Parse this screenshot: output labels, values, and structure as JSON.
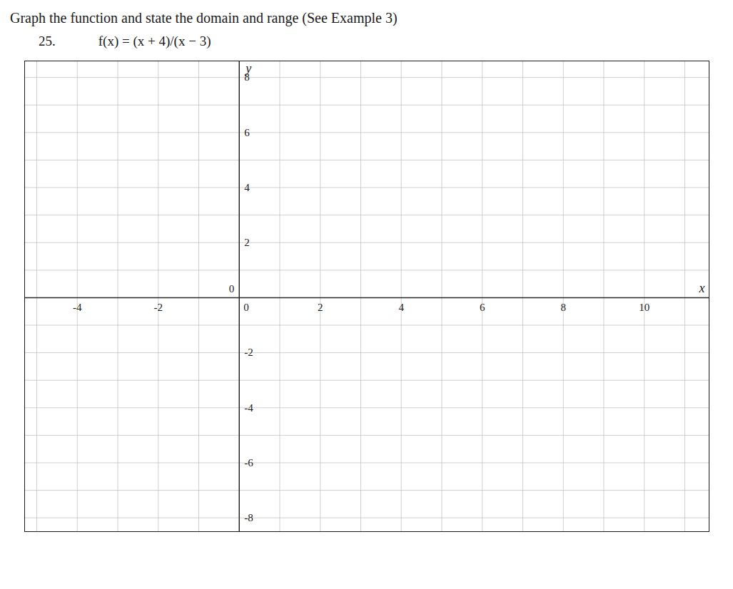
{
  "chart_data": {
    "type": "axes",
    "title": "Graph the function and state the domain and range (See Example 3)",
    "annotations": [
      "25.",
      "f(x) = (x + 4)/(x − 3)"
    ],
    "x_label": "x",
    "y_label": "y",
    "xlim": [
      -5.3,
      11.6
    ],
    "ylim": [
      -8.5,
      8.6
    ],
    "xticks": [
      -4,
      -2,
      0,
      2,
      4,
      6,
      8,
      10
    ],
    "yticks": [
      -8,
      -6,
      -4,
      -2,
      0,
      2,
      4,
      6,
      8
    ],
    "grid": true
  }
}
